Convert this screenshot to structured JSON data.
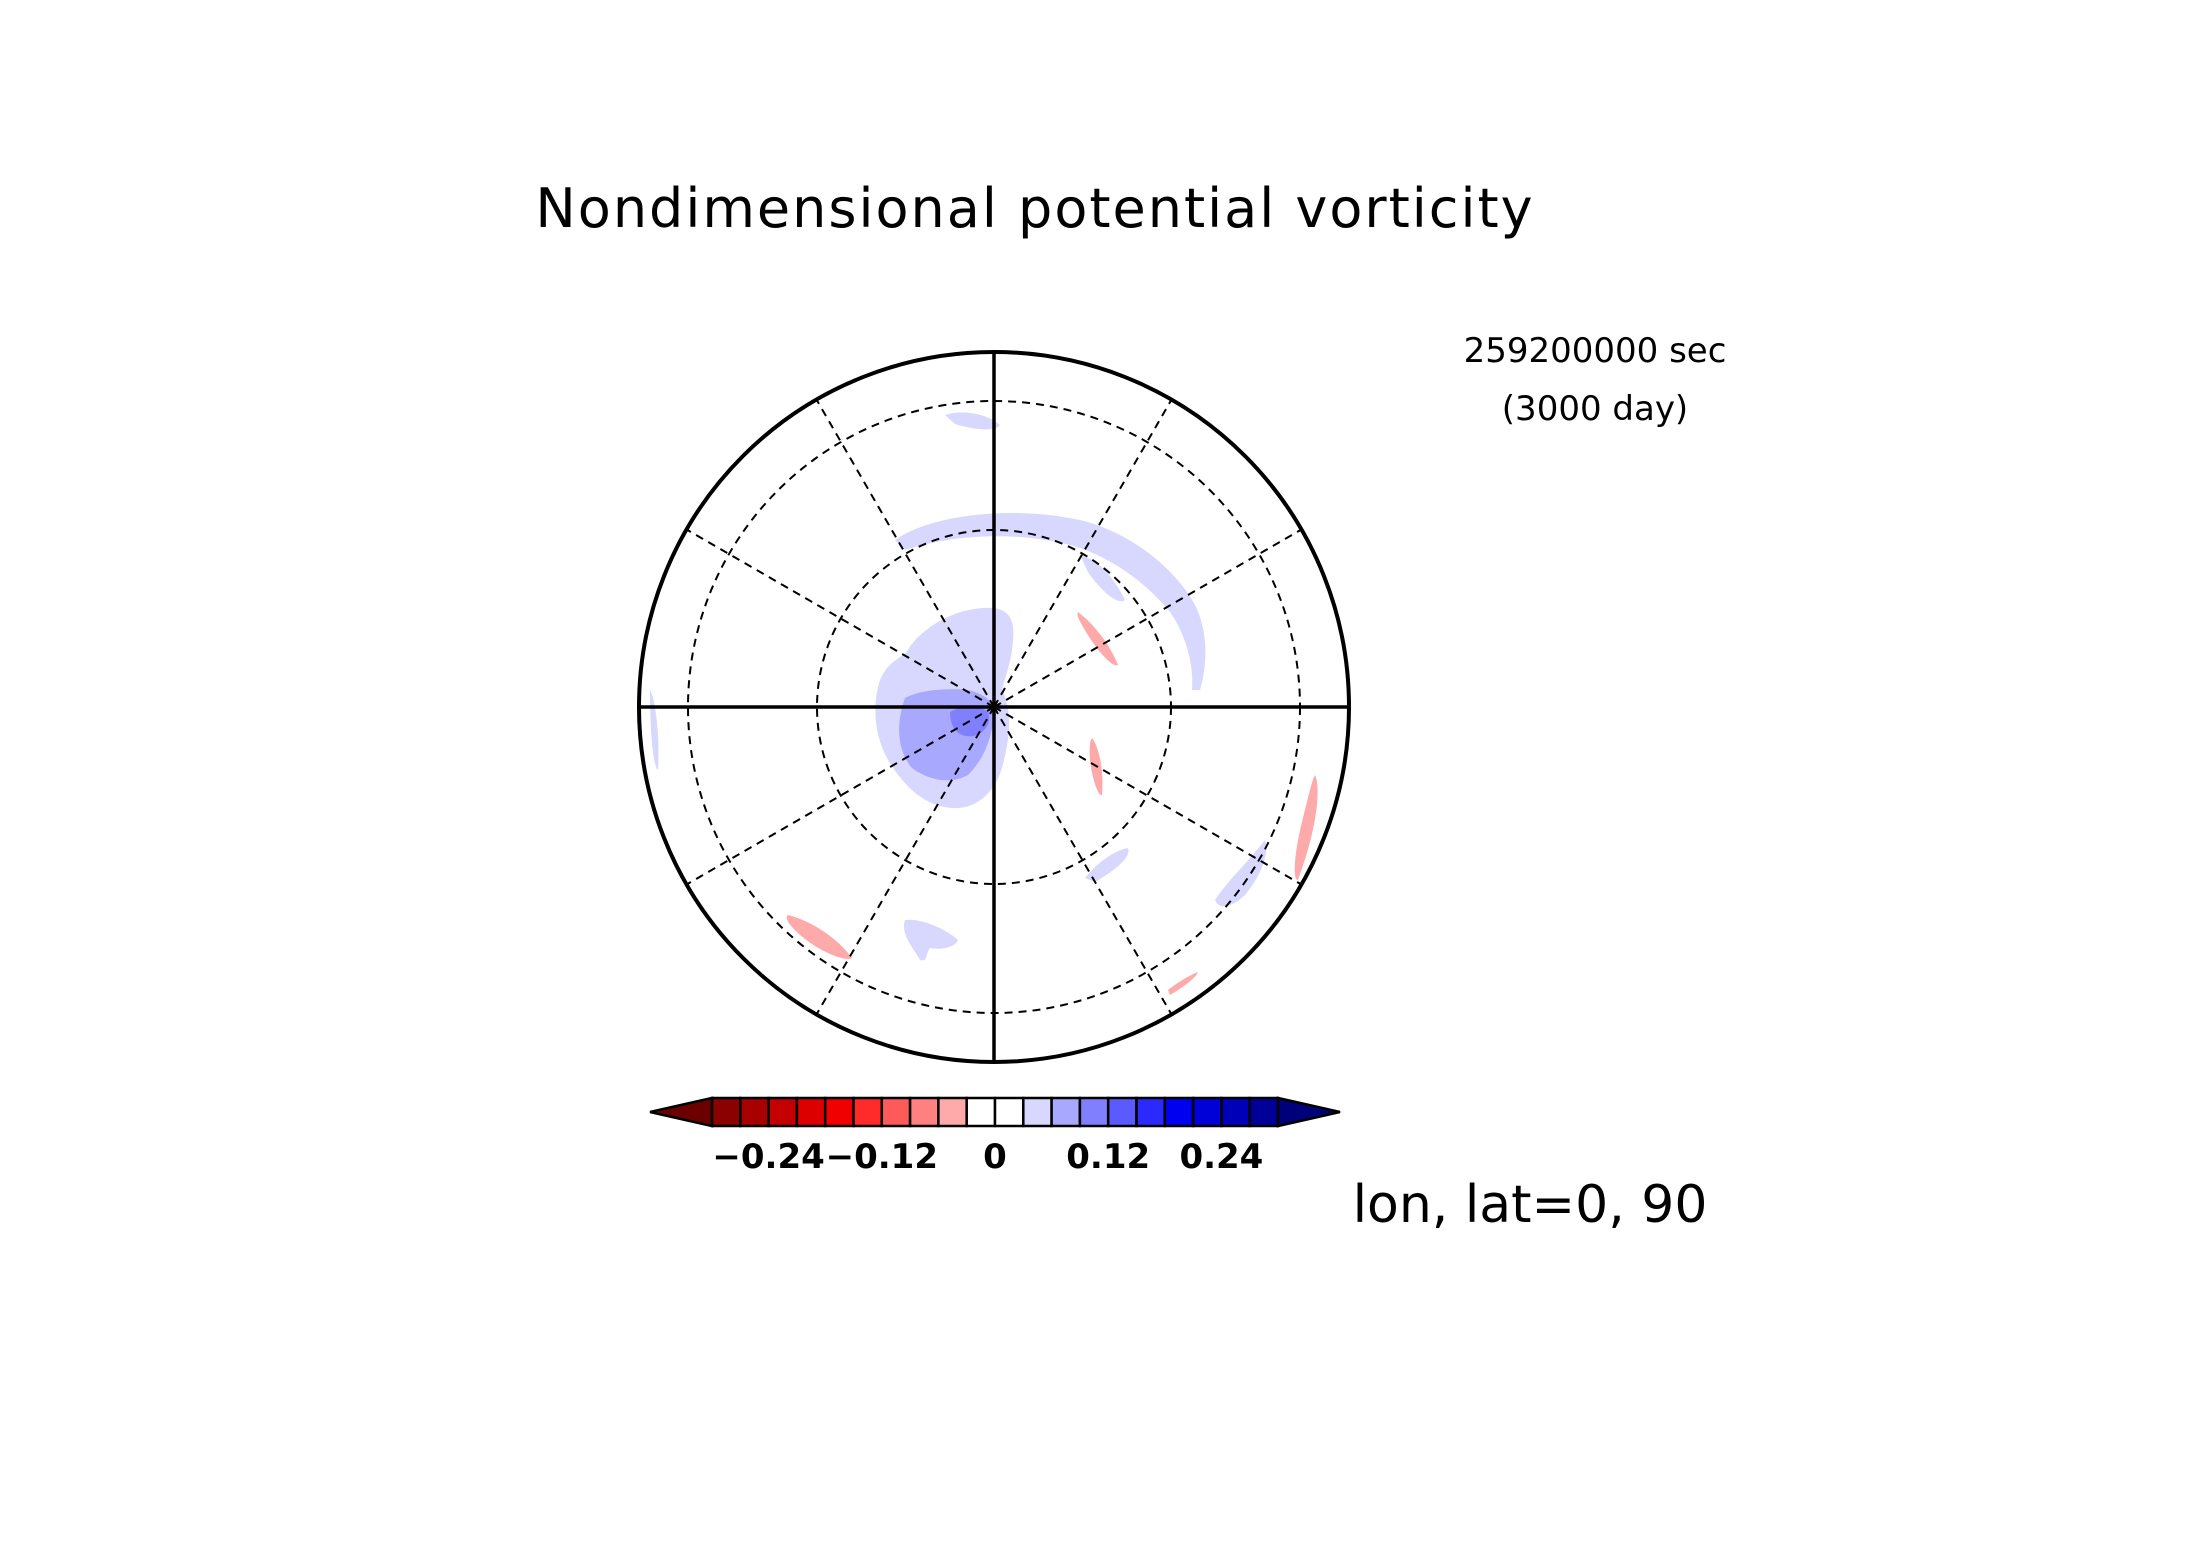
{
  "chart_data": {
    "type": "heatmap",
    "projection": "polar-stereographic",
    "title": "Nondimensional potential vorticity",
    "time_seconds": "259200000 sec",
    "time_days": "(3000 day)",
    "center_label": "lon, lat=0, 90",
    "colorbar": {
      "ticks": [
        "−0.24",
        "−0.12",
        "0",
        "0.12",
        "0.24"
      ],
      "tick_values": [
        -0.24,
        -0.12,
        0,
        0.12,
        0.24
      ],
      "levels": [
        -0.28,
        -0.26,
        -0.24,
        -0.22,
        -0.2,
        -0.18,
        -0.16,
        -0.14,
        -0.12,
        -0.1,
        -0.08,
        -0.06,
        -0.04,
        -0.02,
        0,
        0.02,
        0.04,
        0.06,
        0.08,
        0.1,
        0.12,
        0.14,
        0.16,
        0.18,
        0.2,
        0.22,
        0.24,
        0.26,
        0.28
      ],
      "colors": [
        "#6b0000",
        "#8b0000",
        "#a80000",
        "#c40000",
        "#dd0000",
        "#f00000",
        "#ff2a2a",
        "#ff5a5a",
        "#ff8080",
        "#ffaaaa",
        "#ffffff",
        "#ffffff",
        "#d8d8ff",
        "#a8a8ff",
        "#8080ff",
        "#5a5aff",
        "#2a2aff",
        "#0000f0",
        "#0000d8",
        "#0000b8",
        "#000098",
        "#00007a"
      ],
      "extend": "both"
    },
    "grid": {
      "latitude_circles": "dashed",
      "meridians": "dashed",
      "meridian_spacing_deg": 30
    },
    "features": [
      {
        "name": "polar-negative-pv-core",
        "sign": "positive-blue",
        "level": 0.06
      },
      {
        "name": "arc-band-north",
        "sign": "positive-blue",
        "level": 0.02
      },
      {
        "name": "red-streak-ne",
        "sign": "negative-red",
        "level": -0.02
      },
      {
        "name": "red-streak-e",
        "sign": "negative-red",
        "level": -0.02
      },
      {
        "name": "red-streak-se-edge",
        "sign": "negative-red",
        "level": -0.02
      },
      {
        "name": "red-streak-sw",
        "sign": "negative-red",
        "level": -0.02
      }
    ]
  }
}
